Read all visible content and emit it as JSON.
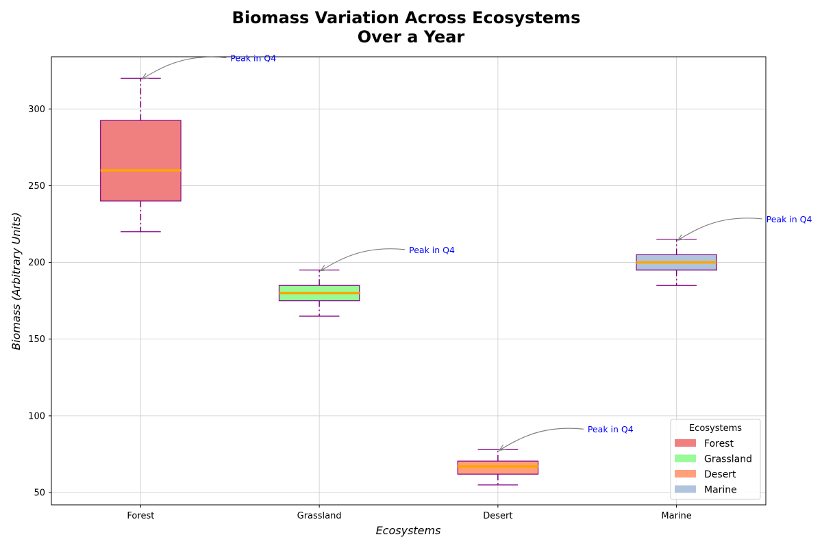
{
  "chart_data": {
    "type": "box",
    "title_line1": "Biomass Variation Across Ecosystems",
    "title_line2": "Over a Year",
    "xlabel": "Ecosystems",
    "ylabel": "Biomass (Arbitrary Units)",
    "ylim": [
      42,
      334
    ],
    "yticks": [
      50,
      100,
      150,
      200,
      250,
      300
    ],
    "grid": true,
    "categories": [
      "Forest",
      "Grassland",
      "Desert",
      "Marine"
    ],
    "boxes": [
      {
        "name": "Forest",
        "whisker_low": 220,
        "q1": 240,
        "median": 260,
        "q3": 292.5,
        "whisker_high": 320,
        "color": "#f08080"
      },
      {
        "name": "Grassland",
        "whisker_low": 165,
        "q1": 175,
        "median": 180,
        "q3": 185,
        "whisker_high": 195,
        "color": "#98fb98"
      },
      {
        "name": "Desert",
        "whisker_low": 55,
        "q1": 62,
        "median": 67,
        "q3": 70.5,
        "whisker_high": 78,
        "color": "#ffa07a"
      },
      {
        "name": "Marine",
        "whisker_low": 185,
        "q1": 195,
        "median": 200,
        "q3": 205,
        "whisker_high": 215,
        "color": "#b0c4de"
      }
    ],
    "median_color": "#ffa500",
    "box_edge_color": "#800080",
    "annotations": [
      {
        "text": "Peak in Q4",
        "category": "Forest",
        "y": 320
      },
      {
        "text": "Peak in Q4",
        "category": "Grassland",
        "y": 195
      },
      {
        "text": "Peak in Q4",
        "category": "Desert",
        "y": 78
      },
      {
        "text": "Peak in Q4",
        "category": "Marine",
        "y": 215
      }
    ],
    "legend": {
      "title": "Ecosystems",
      "position": "lower-right",
      "entries": [
        {
          "label": "Forest",
          "color": "#f08080"
        },
        {
          "label": "Grassland",
          "color": "#98fb98"
        },
        {
          "label": "Desert",
          "color": "#ffa07a"
        },
        {
          "label": "Marine",
          "color": "#b0c4de"
        }
      ]
    }
  }
}
